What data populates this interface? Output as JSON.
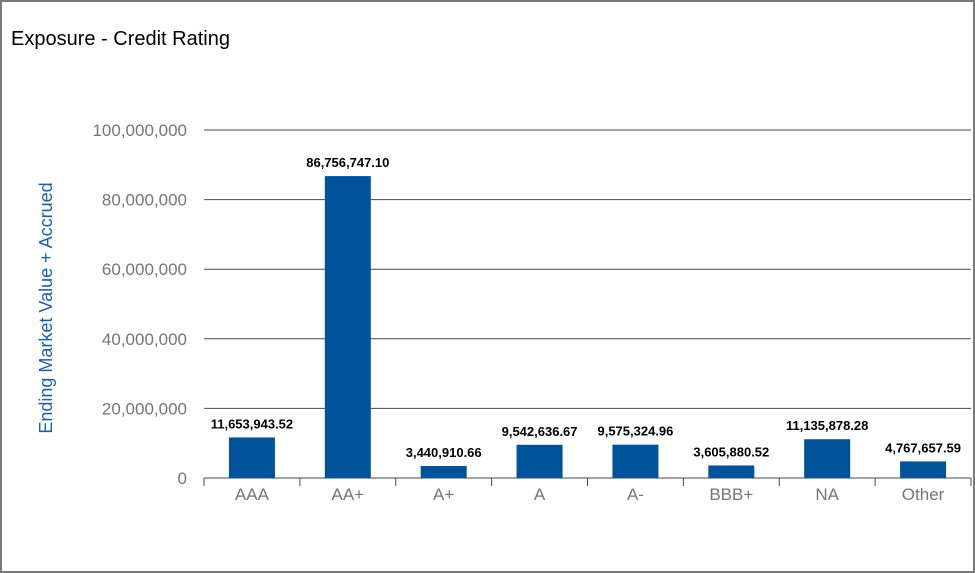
{
  "colors": {
    "bar": "#00529b",
    "ylabel": "#1f5ea8",
    "tick": "#767676",
    "grid": "#4a4a4a"
  },
  "chart_data": {
    "type": "bar",
    "title": "Exposure - Credit Rating",
    "xlabel": "",
    "ylabel": "Ending Market Value + Accrued",
    "categories": [
      "AAA",
      "AA+",
      "A+",
      "A",
      "A-",
      "BBB+",
      "NA",
      "Other"
    ],
    "values": [
      11653943.52,
      86756747.1,
      3440910.66,
      9542636.67,
      9575324.96,
      3605880.52,
      11135878.28,
      4767657.59
    ],
    "value_labels": [
      "11,653,943.52",
      "86,756,747.10",
      "3,440,910.66",
      "9,542,636.67",
      "9,575,324.96",
      "3,605,880.52",
      "11,135,878.28",
      "4,767,657.59"
    ],
    "yticks": [
      0,
      20000000,
      40000000,
      60000000,
      80000000,
      100000000
    ],
    "ytick_labels": [
      "0",
      "20,000,000",
      "40,000,000",
      "60,000,000",
      "80,000,000",
      "100,000,000"
    ],
    "ylim": [
      0,
      100000000
    ],
    "grid": true,
    "legend": "none"
  }
}
